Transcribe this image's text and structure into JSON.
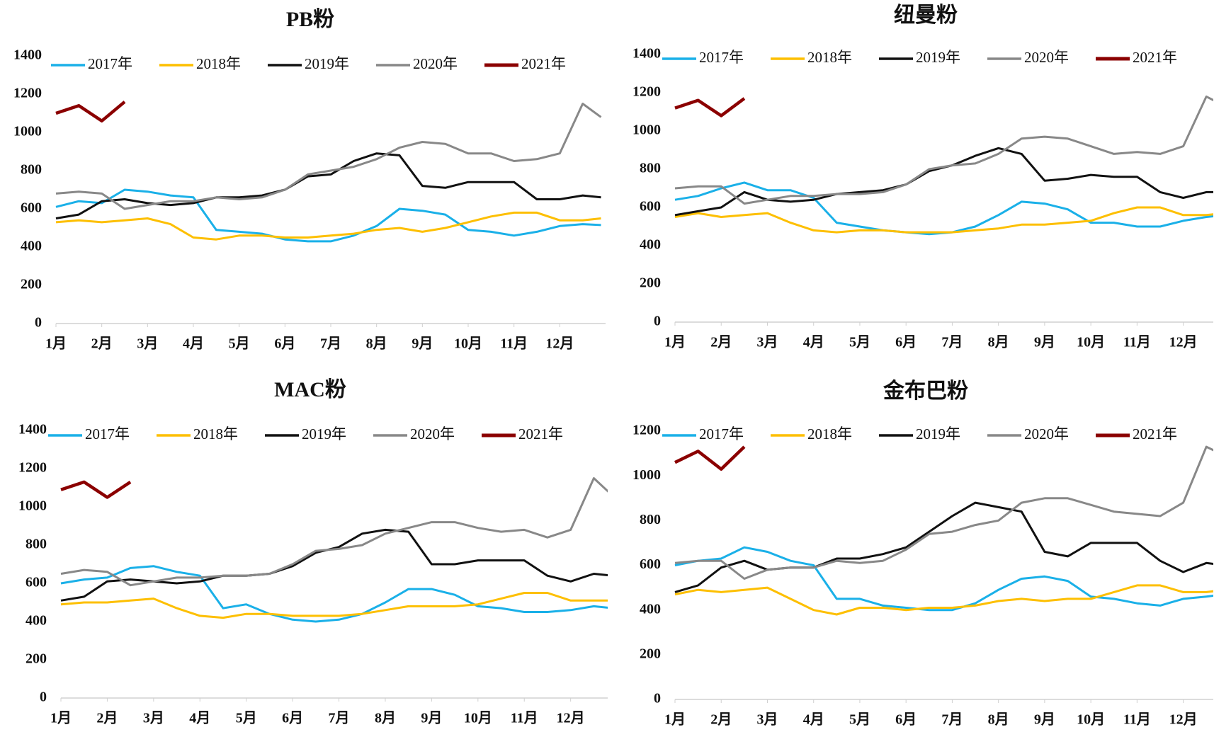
{
  "chart_data": [
    {
      "type": "line",
      "title": "PB粉",
      "x": [
        1,
        1.5,
        2,
        2.5,
        3,
        3.5,
        4,
        4.5,
        5,
        5.5,
        6,
        6.5,
        7,
        7.5,
        8,
        8.5,
        9,
        9.5,
        10,
        10.5,
        11,
        11.5,
        12,
        12.5,
        12.9
      ],
      "xlim": [
        1,
        13
      ],
      "xticks": [
        {
          "value": 1,
          "label": "1月"
        },
        {
          "value": 2,
          "label": "2月"
        },
        {
          "value": 3,
          "label": "3月"
        },
        {
          "value": 4,
          "label": "4月"
        },
        {
          "value": 5,
          "label": "5月"
        },
        {
          "value": 6,
          "label": "6月"
        },
        {
          "value": 7,
          "label": "7月"
        },
        {
          "value": 8,
          "label": "8月"
        },
        {
          "value": 9,
          "label": "9月"
        },
        {
          "value": 10,
          "label": "10月"
        },
        {
          "value": 11,
          "label": "11月"
        },
        {
          "value": 12,
          "label": "12月"
        }
      ],
      "ylim": [
        0,
        1400
      ],
      "yticks": [
        0,
        200,
        400,
        600,
        800,
        1000,
        1200,
        1400
      ],
      "series": [
        {
          "name": "2017年",
          "color": "#1ab0e8",
          "values": [
            610,
            640,
            630,
            700,
            690,
            670,
            660,
            490,
            480,
            470,
            440,
            430,
            430,
            460,
            510,
            600,
            590,
            570,
            490,
            480,
            460,
            480,
            510,
            520,
            515
          ]
        },
        {
          "name": "2018年",
          "color": "#fdbf00",
          "values": [
            530,
            540,
            530,
            540,
            550,
            520,
            450,
            440,
            460,
            460,
            450,
            450,
            460,
            470,
            490,
            500,
            480,
            500,
            530,
            560,
            580,
            580,
            540,
            540,
            550
          ]
        },
        {
          "name": "2019年",
          "color": "#111111",
          "values": [
            550,
            570,
            640,
            650,
            630,
            620,
            630,
            660,
            660,
            670,
            700,
            770,
            780,
            850,
            890,
            880,
            720,
            710,
            740,
            740,
            740,
            650,
            650,
            670,
            660
          ]
        },
        {
          "name": "2020年",
          "color": "#888888",
          "values": [
            680,
            690,
            680,
            600,
            620,
            640,
            640,
            660,
            650,
            660,
            700,
            780,
            800,
            820,
            860,
            920,
            950,
            940,
            890,
            890,
            850,
            860,
            890,
            1150,
            1080
          ]
        },
        {
          "name": "2021年",
          "color": "#8b0000",
          "values": [
            1100,
            1140,
            1060,
            1160,
            null,
            null,
            null,
            null,
            null,
            null,
            null,
            null,
            null,
            null,
            null,
            null,
            null,
            null,
            null,
            null,
            null,
            null,
            null,
            null,
            null
          ]
        }
      ]
    },
    {
      "type": "line",
      "title": "纽曼粉",
      "x": [
        1,
        1.5,
        2,
        2.5,
        3,
        3.5,
        4,
        4.5,
        5,
        5.5,
        6,
        6.5,
        7,
        7.5,
        8,
        8.5,
        9,
        9.5,
        10,
        10.5,
        11,
        11.5,
        12,
        12.5,
        12.9
      ],
      "xlim": [
        1,
        12.65
      ],
      "xticks": [
        {
          "value": 1,
          "label": "1月"
        },
        {
          "value": 2,
          "label": "2月"
        },
        {
          "value": 3,
          "label": "3月"
        },
        {
          "value": 4,
          "label": "4月"
        },
        {
          "value": 5,
          "label": "5月"
        },
        {
          "value": 6,
          "label": "6月"
        },
        {
          "value": 7,
          "label": "7月"
        },
        {
          "value": 8,
          "label": "8月"
        },
        {
          "value": 9,
          "label": "9月"
        },
        {
          "value": 10,
          "label": "10月"
        },
        {
          "value": 11,
          "label": "11月"
        },
        {
          "value": 12,
          "label": "12月"
        }
      ],
      "ylim": [
        0,
        1400
      ],
      "yticks": [
        0,
        200,
        400,
        600,
        800,
        1000,
        1200,
        1400
      ],
      "series": [
        {
          "name": "2017年",
          "color": "#1ab0e8",
          "values": [
            640,
            660,
            700,
            730,
            690,
            690,
            650,
            520,
            500,
            480,
            470,
            460,
            470,
            500,
            560,
            630,
            620,
            590,
            520,
            520,
            500,
            500,
            530,
            550,
            560
          ]
        },
        {
          "name": "2018年",
          "color": "#fdbf00",
          "values": [
            550,
            570,
            550,
            560,
            570,
            520,
            480,
            470,
            480,
            480,
            470,
            470,
            470,
            480,
            490,
            510,
            510,
            520,
            530,
            570,
            600,
            600,
            560,
            560,
            570
          ]
        },
        {
          "name": "2019年",
          "color": "#111111",
          "values": [
            560,
            580,
            600,
            680,
            640,
            630,
            640,
            670,
            680,
            690,
            720,
            790,
            820,
            870,
            910,
            880,
            740,
            750,
            770,
            760,
            760,
            680,
            650,
            680,
            680
          ]
        },
        {
          "name": "2020年",
          "color": "#888888",
          "values": [
            700,
            710,
            710,
            620,
            640,
            660,
            660,
            670,
            670,
            680,
            720,
            800,
            820,
            830,
            880,
            960,
            970,
            960,
            920,
            880,
            890,
            880,
            920,
            1180,
            1130
          ]
        },
        {
          "name": "2021年",
          "color": "#8b0000",
          "values": [
            1120,
            1160,
            1080,
            1170,
            null,
            null,
            null,
            null,
            null,
            null,
            null,
            null,
            null,
            null,
            null,
            null,
            null,
            null,
            null,
            null,
            null,
            null,
            null,
            null,
            null
          ]
        }
      ]
    },
    {
      "type": "line",
      "title": "MAC粉",
      "x": [
        1,
        1.5,
        2,
        2.5,
        3,
        3.5,
        4,
        4.5,
        5,
        5.5,
        6,
        6.5,
        7,
        7.5,
        8,
        8.5,
        9,
        9.5,
        10,
        10.5,
        11,
        11.5,
        12,
        12.5,
        12.9
      ],
      "xlim": [
        1,
        12.8
      ],
      "xticks": [
        {
          "value": 1,
          "label": "1月"
        },
        {
          "value": 2,
          "label": "2月"
        },
        {
          "value": 3,
          "label": "3月"
        },
        {
          "value": 4,
          "label": "4月"
        },
        {
          "value": 5,
          "label": "5月"
        },
        {
          "value": 6,
          "label": "6月"
        },
        {
          "value": 7,
          "label": "7月"
        },
        {
          "value": 8,
          "label": "8月"
        },
        {
          "value": 9,
          "label": "9月"
        },
        {
          "value": 10,
          "label": "10月"
        },
        {
          "value": 11,
          "label": "11月"
        },
        {
          "value": 12,
          "label": "12月"
        }
      ],
      "ylim": [
        0,
        1400
      ],
      "yticks": [
        0,
        200,
        400,
        600,
        800,
        1000,
        1200,
        1400
      ],
      "series": [
        {
          "name": "2017年",
          "color": "#1ab0e8",
          "values": [
            600,
            620,
            630,
            680,
            690,
            660,
            640,
            470,
            490,
            440,
            410,
            400,
            410,
            440,
            500,
            570,
            570,
            540,
            480,
            470,
            450,
            450,
            460,
            480,
            470
          ]
        },
        {
          "name": "2018年",
          "color": "#fdbf00",
          "values": [
            490,
            500,
            500,
            510,
            520,
            470,
            430,
            420,
            440,
            440,
            430,
            430,
            430,
            440,
            460,
            480,
            480,
            480,
            490,
            520,
            550,
            550,
            510,
            510,
            510
          ]
        },
        {
          "name": "2019年",
          "color": "#111111",
          "values": [
            510,
            530,
            610,
            620,
            610,
            600,
            610,
            640,
            640,
            650,
            690,
            760,
            790,
            860,
            880,
            870,
            700,
            700,
            720,
            720,
            720,
            640,
            610,
            650,
            640
          ]
        },
        {
          "name": "2020年",
          "color": "#888888",
          "values": [
            650,
            670,
            660,
            590,
            610,
            630,
            630,
            640,
            640,
            650,
            700,
            770,
            780,
            800,
            860,
            890,
            920,
            920,
            890,
            870,
            880,
            840,
            880,
            1150,
            1060
          ]
        },
        {
          "name": "2021年",
          "color": "#8b0000",
          "values": [
            1090,
            1130,
            1050,
            1130,
            null,
            null,
            null,
            null,
            null,
            null,
            null,
            null,
            null,
            null,
            null,
            null,
            null,
            null,
            null,
            null,
            null,
            null,
            null,
            null,
            null
          ]
        }
      ]
    },
    {
      "type": "line",
      "title": "金布巴粉",
      "x": [
        1,
        1.5,
        2,
        2.5,
        3,
        3.5,
        4,
        4.5,
        5,
        5.5,
        6,
        6.5,
        7,
        7.5,
        8,
        8.5,
        9,
        9.5,
        10,
        10.5,
        11,
        11.5,
        12,
        12.5,
        12.9
      ],
      "xlim": [
        1,
        12.65
      ],
      "xticks": [
        {
          "value": 1,
          "label": "1月"
        },
        {
          "value": 2,
          "label": "2月"
        },
        {
          "value": 3,
          "label": "3月"
        },
        {
          "value": 4,
          "label": "4月"
        },
        {
          "value": 5,
          "label": "5月"
        },
        {
          "value": 6,
          "label": "6月"
        },
        {
          "value": 7,
          "label": "7月"
        },
        {
          "value": 8,
          "label": "8月"
        },
        {
          "value": 9,
          "label": "9月"
        },
        {
          "value": 10,
          "label": "10月"
        },
        {
          "value": 11,
          "label": "11月"
        },
        {
          "value": 12,
          "label": "12月"
        }
      ],
      "ylim": [
        0,
        1200
      ],
      "yticks": [
        0,
        200,
        400,
        600,
        800,
        1000,
        1200
      ],
      "series": [
        {
          "name": "2017年",
          "color": "#1ab0e8",
          "values": [
            600,
            620,
            630,
            680,
            660,
            620,
            600,
            450,
            450,
            420,
            410,
            400,
            400,
            430,
            490,
            540,
            550,
            530,
            460,
            450,
            430,
            420,
            450,
            460,
            470
          ]
        },
        {
          "name": "2018年",
          "color": "#fdbf00",
          "values": [
            470,
            490,
            480,
            490,
            500,
            450,
            400,
            380,
            410,
            410,
            400,
            410,
            410,
            420,
            440,
            450,
            440,
            450,
            450,
            480,
            510,
            510,
            480,
            480,
            490
          ]
        },
        {
          "name": "2019年",
          "color": "#111111",
          "values": [
            480,
            510,
            590,
            620,
            580,
            590,
            590,
            630,
            630,
            650,
            680,
            750,
            820,
            880,
            860,
            840,
            660,
            640,
            700,
            700,
            700,
            620,
            570,
            610,
            600
          ]
        },
        {
          "name": "2020年",
          "color": "#888888",
          "values": [
            610,
            620,
            620,
            540,
            580,
            590,
            590,
            620,
            610,
            620,
            670,
            740,
            750,
            780,
            800,
            880,
            900,
            900,
            870,
            840,
            830,
            820,
            880,
            1130,
            1090
          ]
        },
        {
          "name": "2021年",
          "color": "#8b0000",
          "values": [
            1060,
            1110,
            1030,
            1130,
            null,
            null,
            null,
            null,
            null,
            null,
            null,
            null,
            null,
            null,
            null,
            null,
            null,
            null,
            null,
            null,
            null,
            null,
            null,
            null,
            null
          ]
        }
      ]
    }
  ]
}
